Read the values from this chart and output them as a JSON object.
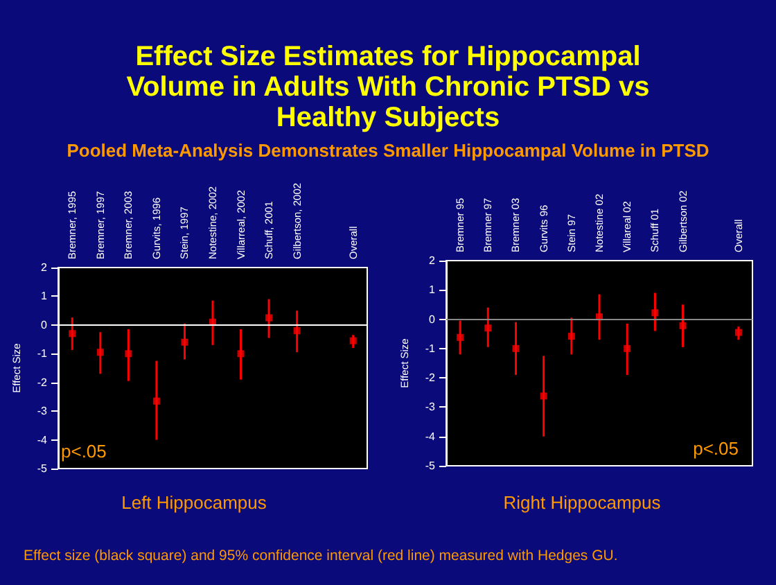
{
  "chart_data": [
    {
      "type": "scatter",
      "title": "Effect Size Estimates for Hippocampal Volume in Adults With Chronic PTSD vs Healthy Subjects",
      "subtitle": "Pooled Meta-Analysis Demonstrates Smaller Hippocampal Volume in PTSD",
      "xlabel": "Left Hippocampus",
      "ylabel": "Effect Size",
      "categories": [
        "Bremner, 1995",
        "Bremner, 1997",
        "Bremner, 2003",
        "Gurvits, 1996",
        "Stein, 1997",
        "Notestine, 2002",
        "Villarreal, 2002",
        "Schuff, 2001",
        "Gilbertson, 2002",
        null,
        "Overall"
      ],
      "series": [
        {
          "color": "#ff0000",
          "values": [
            -0.3,
            -0.95,
            -1.0,
            -2.65,
            -0.6,
            0.1,
            -1.0,
            0.25,
            -0.2,
            null,
            -0.55
          ],
          "errors": [
            [
              -0.87,
              0.26
            ],
            [
              -1.7,
              -0.25
            ],
            [
              -1.95,
              -0.15
            ],
            [
              -4.0,
              -1.25
            ],
            [
              -1.2,
              0.05
            ],
            [
              -0.7,
              0.85
            ],
            [
              -1.9,
              -0.15
            ],
            [
              -0.45,
              0.9
            ],
            [
              -0.95,
              0.5
            ],
            null,
            [
              -0.8,
              -0.35
            ]
          ]
        }
      ],
      "ylim": [
        -5,
        2
      ],
      "yticks": [
        -5,
        -4,
        -3,
        -2,
        -1,
        0,
        1,
        2
      ],
      "marker": "square",
      "grid": false,
      "ref_lines": [
        {
          "axis": "y",
          "value": 0,
          "color": "#ffffff"
        }
      ],
      "annotations": [
        "p<.05"
      ]
    },
    {
      "type": "scatter",
      "xlabel": "Right Hippocampus",
      "ylabel": "Effect Size",
      "categories": [
        "Bremner 95",
        "Bremner 97",
        "Bremner 03",
        "Gurvits 96",
        "Stein 97",
        "Notestine 02",
        "Villareal 02",
        "Schuff 01",
        "Gilbertson 02",
        null,
        "Overall"
      ],
      "series": [
        {
          "color": "#ff0000",
          "values": [
            -0.62,
            -0.3,
            -1.0,
            -2.62,
            -0.58,
            0.08,
            -1.0,
            0.22,
            -0.22,
            null,
            -0.45
          ],
          "errors": [
            [
              -1.2,
              -0.05
            ],
            [
              -0.95,
              0.4
            ],
            [
              -1.9,
              -0.1
            ],
            [
              -4.0,
              -1.25
            ],
            [
              -1.2,
              0.05
            ],
            [
              -0.7,
              0.85
            ],
            [
              -1.9,
              -0.15
            ],
            [
              -0.4,
              0.9
            ],
            [
              -0.95,
              0.5
            ],
            null,
            [
              -0.7,
              -0.25
            ]
          ]
        }
      ],
      "ylim": [
        -5,
        2
      ],
      "yticks": [
        -5,
        -4,
        -3,
        -2,
        -1,
        0,
        1,
        2
      ],
      "marker": "square",
      "grid": false,
      "ref_lines": [
        {
          "axis": "y",
          "value": 0,
          "color": "#888888"
        }
      ],
      "annotations": [
        "p<.05",
        "Effect size (black square) and 95% confidence interval (red line) measured with Hedges GU."
      ]
    }
  ]
}
